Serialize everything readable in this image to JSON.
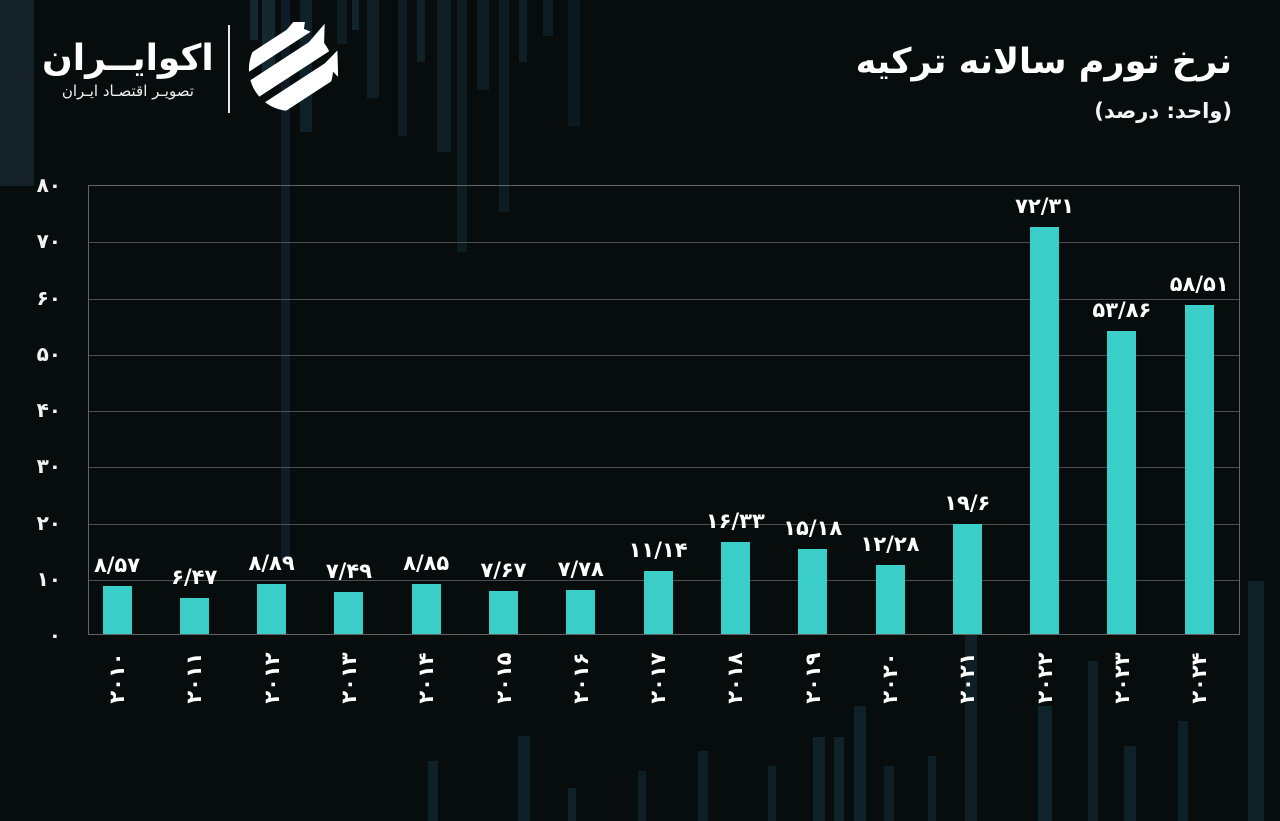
{
  "brand": {
    "name": "اکوایــران",
    "tagline": "تصویـر اقتصـاد ایـران"
  },
  "header": {
    "title": "نرخ تورم سالانه ترکیه",
    "subtitle": "(واحد: درصد)"
  },
  "chart_data": {
    "type": "bar",
    "title": "نرخ تورم سالانه ترکیه",
    "unit_note": "(واحد: درصد)",
    "unit": "درصد",
    "categories": [
      "2010",
      "2011",
      "2012",
      "2013",
      "2014",
      "2015",
      "2016",
      "2017",
      "2018",
      "2019",
      "2020",
      "2021",
      "2022",
      "2023",
      "2024"
    ],
    "categories_fa": [
      "۲۰۱۰",
      "۲۰۱۱",
      "۲۰۱۲",
      "۲۰۱۳",
      "۲۰۱۴",
      "۲۰۱۵",
      "۲۰۱۶",
      "۲۰۱۷",
      "۲۰۱۸",
      "۲۰۱۹",
      "۲۰۲۰",
      "۲۰۲۱",
      "۲۰۲۲",
      "۲۰۲۳",
      "۲۰۲۴"
    ],
    "values": [
      8.57,
      6.47,
      8.89,
      7.49,
      8.85,
      7.67,
      7.78,
      11.14,
      16.33,
      15.18,
      12.28,
      19.6,
      72.31,
      53.86,
      58.51
    ],
    "value_labels_fa": [
      "۸/۵۷",
      "۶/۴۷",
      "۸/۸۹",
      "۷/۴۹",
      "۸/۸۵",
      "۷/۶۷",
      "۷/۷۸",
      "۱۱/۱۴",
      "۱۶/۳۳",
      "۱۵/۱۸",
      "۱۲/۲۸",
      "۱۹/۶",
      "۷۲/۳۱",
      "۵۳/۸۶",
      "۵۸/۵۱"
    ],
    "xlabel": "",
    "ylabel": "",
    "ylim": [
      0,
      80
    ],
    "ytick_step": 10,
    "yticks_fa": [
      "۰",
      "۱۰",
      "۲۰",
      "۳۰",
      "۴۰",
      "۵۰",
      "۶۰",
      "۷۰",
      "۸۰"
    ],
    "grid": true,
    "legend": false,
    "colors": {
      "bar": "#3bcdc8",
      "background": "#070c0d",
      "grid_line": "#4e4e4e",
      "axis_frame": "#646464",
      "text": "#ffffff"
    }
  }
}
